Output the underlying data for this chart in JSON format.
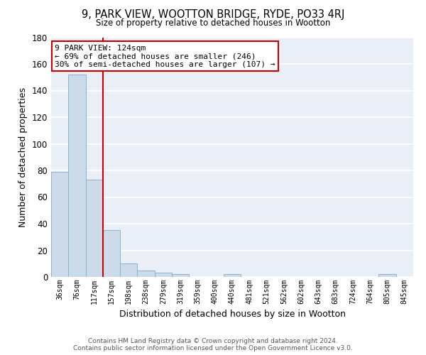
{
  "title": "9, PARK VIEW, WOOTTON BRIDGE, RYDE, PO33 4RJ",
  "subtitle": "Size of property relative to detached houses in Wootton",
  "xlabel": "Distribution of detached houses by size in Wootton",
  "ylabel": "Number of detached properties",
  "bar_color": "#ccdaea",
  "bar_edge_color": "#8ab4d4",
  "bg_color": "#eaeff7",
  "grid_color": "white",
  "categories": [
    "36sqm",
    "76sqm",
    "117sqm",
    "157sqm",
    "198sqm",
    "238sqm",
    "279sqm",
    "319sqm",
    "359sqm",
    "400sqm",
    "440sqm",
    "481sqm",
    "521sqm",
    "562sqm",
    "602sqm",
    "643sqm",
    "683sqm",
    "724sqm",
    "764sqm",
    "805sqm",
    "845sqm"
  ],
  "values": [
    79,
    152,
    73,
    35,
    10,
    5,
    3,
    2,
    0,
    0,
    2,
    0,
    0,
    0,
    0,
    0,
    0,
    0,
    0,
    2,
    0
  ],
  "ylim": [
    0,
    180
  ],
  "yticks": [
    0,
    20,
    40,
    60,
    80,
    100,
    120,
    140,
    160,
    180
  ],
  "red_line_x": 2.5,
  "annotation_title": "9 PARK VIEW: 124sqm",
  "annotation_line1": "← 69% of detached houses are smaller (246)",
  "annotation_line2": "30% of semi-detached houses are larger (107) →",
  "annotation_box_color": "white",
  "annotation_box_edge": "#cc0000",
  "red_line_color": "#cc0000",
  "footer1": "Contains HM Land Registry data © Crown copyright and database right 2024.",
  "footer2": "Contains public sector information licensed under the Open Government Licence v3.0."
}
